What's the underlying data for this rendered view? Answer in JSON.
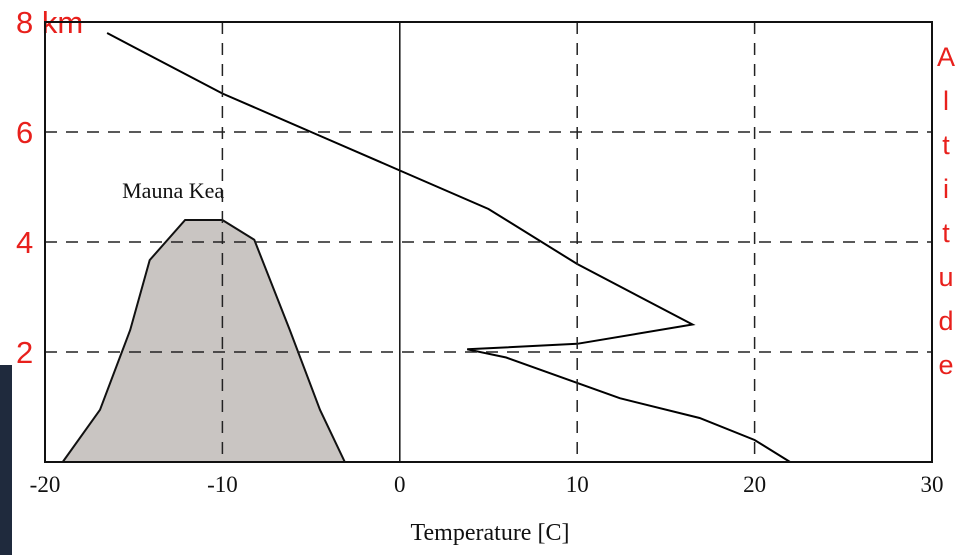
{
  "chart_data": {
    "type": "line",
    "x_label": "Temperature [C]",
    "y_label": "Altitude",
    "xlim": [
      -20,
      30
    ],
    "ylim": [
      0,
      8
    ],
    "xticks": [
      -20,
      -10,
      0,
      10,
      20,
      30
    ],
    "yticks": [
      2,
      4,
      6,
      {
        "value": 8,
        "label": "8 km"
      }
    ],
    "grid": true,
    "series": [
      {
        "color": "#000000",
        "x": [
          -16.5,
          -10,
          -5,
          0,
          5,
          10,
          16.5,
          10,
          3.8,
          6,
          12.4,
          16.9,
          20,
          22
        ],
        "values": [
          7.8,
          6.7,
          6.0,
          5.3,
          4.6,
          3.6,
          2.5,
          2.15,
          2.05,
          1.9,
          1.16,
          0.8,
          0.4,
          0
        ]
      },
      {
        "name": "Mauna Kea",
        "type": "area",
        "color": "#c9c5c2",
        "x": [
          -19,
          -16.9,
          -15.2,
          -14.1,
          -12.1,
          -10,
          -8.2,
          -6.2,
          -4.5,
          -3.1
        ],
        "values": [
          0,
          0.95,
          2.4,
          3.67,
          4.4,
          4.4,
          4.04,
          2.4,
          0.95,
          0
        ]
      }
    ]
  }
}
